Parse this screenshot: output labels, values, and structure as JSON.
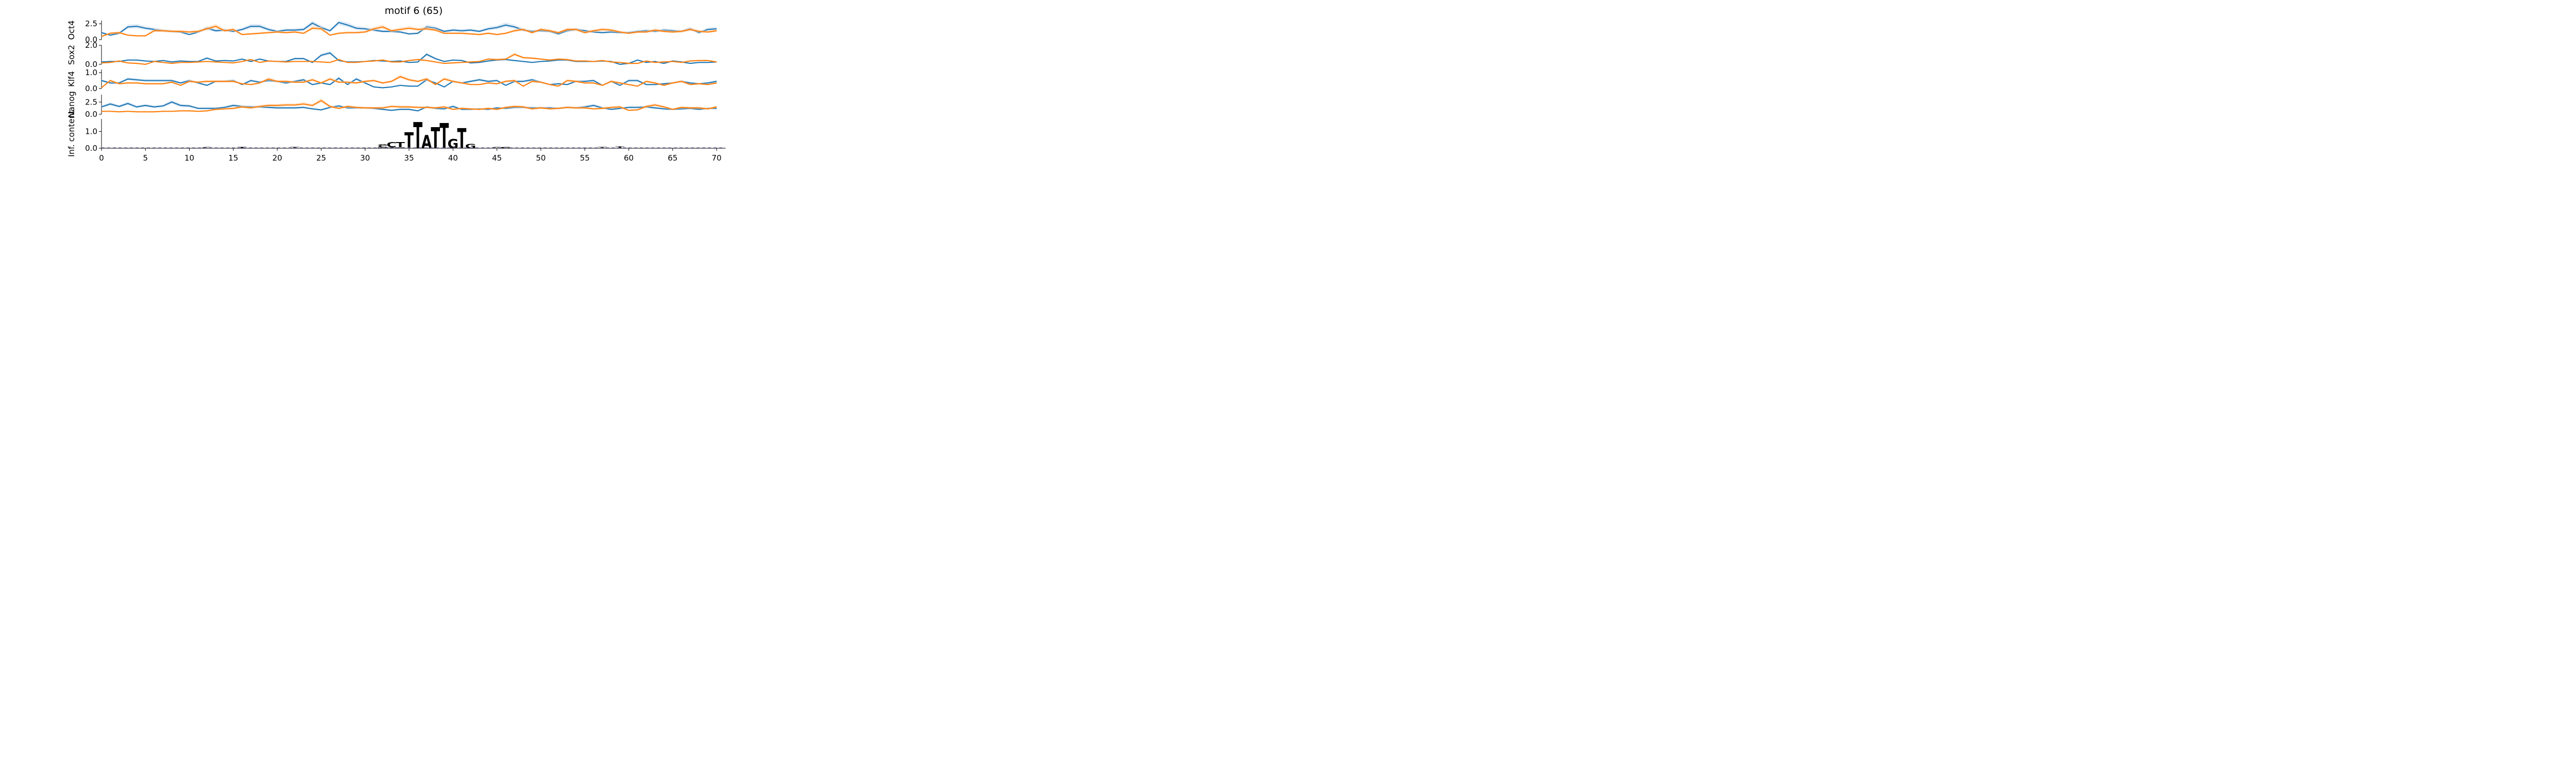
{
  "chart_data": {
    "type": "line",
    "title": "motif 6 (65)",
    "xlabel": "",
    "xlim": [
      0,
      71
    ],
    "x_ticks": [
      0,
      5,
      10,
      15,
      20,
      25,
      30,
      35,
      40,
      45,
      50,
      55,
      60,
      65,
      70
    ],
    "colors": {
      "blue": "#1f77b4",
      "orange": "#ff7f0e",
      "blue_band": "#c6dbef",
      "orange_band": "#fdd9b5"
    },
    "tracks": [
      {
        "ylabel": "Oct4",
        "ylim": [
          0,
          3.0
        ],
        "yticks": [
          0.0,
          2.5
        ],
        "ytick_labels": [
          "0.0",
          "2.5"
        ],
        "series": [
          {
            "color": "blue",
            "values": [
              1.1,
              0.7,
              1.0,
              2.0,
              2.1,
              1.8,
              1.6,
              1.4,
              1.3,
              1.2,
              0.8,
              1.2,
              1.8,
              1.4,
              1.5,
              1.3,
              1.6,
              2.1,
              2.1,
              1.6,
              1.3,
              1.5,
              1.5,
              1.6,
              2.6,
              1.9,
              1.4,
              2.7,
              2.3,
              1.8,
              1.7,
              1.5,
              1.3,
              1.3,
              1.2,
              0.9,
              1.0,
              2.0,
              1.8,
              1.3,
              1.5,
              1.4,
              1.5,
              1.3,
              1.7,
              1.9,
              2.3,
              2.0,
              1.5,
              1.3,
              1.4,
              1.3,
              0.9,
              1.4,
              1.6,
              1.4,
              1.2,
              1.1,
              1.2,
              1.1,
              1.1,
              1.3,
              1.4,
              1.3,
              1.5,
              1.4,
              1.3,
              1.7,
              1.1,
              1.6,
              1.7
            ]
          },
          {
            "color": "orange",
            "values": [
              0.5,
              1.0,
              1.1,
              0.7,
              0.6,
              0.6,
              1.4,
              1.4,
              1.3,
              1.3,
              1.2,
              1.3,
              1.7,
              2.1,
              1.4,
              1.6,
              0.8,
              0.9,
              1.0,
              1.1,
              1.2,
              1.1,
              1.2,
              1.0,
              1.8,
              1.7,
              0.7,
              1.0,
              1.1,
              1.1,
              1.2,
              1.7,
              2.0,
              1.4,
              1.6,
              1.8,
              1.6,
              1.7,
              1.5,
              1.0,
              1.0,
              1.0,
              0.9,
              0.8,
              1.0,
              0.8,
              1.0,
              1.4,
              1.6,
              1.1,
              1.6,
              1.4,
              1.1,
              1.6,
              1.6,
              1.1,
              1.4,
              1.6,
              1.5,
              1.2,
              1.0,
              1.2,
              1.2,
              1.5,
              1.3,
              1.2,
              1.3,
              1.6,
              1.3,
              1.2,
              1.4
            ]
          }
        ]
      },
      {
        "ylabel": "Sox2",
        "ylim": [
          0,
          2.0
        ],
        "yticks": [
          0.0,
          2.0
        ],
        "ytick_labels": [
          "0.0",
          "2.0"
        ],
        "series": [
          {
            "color": "blue",
            "values": [
              0.25,
              0.3,
              0.3,
              0.45,
              0.45,
              0.35,
              0.3,
              0.4,
              0.25,
              0.35,
              0.3,
              0.3,
              0.65,
              0.35,
              0.4,
              0.35,
              0.55,
              0.3,
              0.55,
              0.35,
              0.3,
              0.3,
              0.6,
              0.6,
              0.2,
              0.95,
              1.2,
              0.4,
              0.25,
              0.25,
              0.3,
              0.4,
              0.35,
              0.3,
              0.35,
              0.2,
              0.25,
              1.05,
              0.6,
              0.3,
              0.45,
              0.4,
              0.15,
              0.2,
              0.35,
              0.45,
              0.5,
              0.4,
              0.3,
              0.2,
              0.3,
              0.35,
              0.45,
              0.45,
              0.3,
              0.3,
              0.3,
              0.35,
              0.3,
              0.0,
              0.1,
              0.45,
              0.2,
              0.3,
              0.1,
              0.35,
              0.25,
              0.1,
              0.2,
              0.2,
              0.25
            ]
          },
          {
            "color": "orange",
            "values": [
              0.15,
              0.2,
              0.35,
              0.15,
              0.1,
              0.0,
              0.3,
              0.2,
              0.1,
              0.2,
              0.2,
              0.25,
              0.3,
              0.25,
              0.2,
              0.15,
              0.3,
              0.5,
              0.2,
              0.35,
              0.3,
              0.25,
              0.3,
              0.3,
              0.3,
              0.25,
              0.2,
              0.5,
              0.2,
              0.2,
              0.3,
              0.35,
              0.45,
              0.25,
              0.25,
              0.4,
              0.5,
              0.4,
              0.25,
              0.1,
              0.15,
              0.2,
              0.25,
              0.3,
              0.55,
              0.5,
              0.55,
              1.05,
              0.7,
              0.65,
              0.55,
              0.45,
              0.55,
              0.5,
              0.35,
              0.35,
              0.3,
              0.4,
              0.25,
              0.2,
              0.1,
              0.1,
              0.35,
              0.2,
              0.25,
              0.3,
              0.2,
              0.35,
              0.4,
              0.4,
              0.25
            ]
          }
        ]
      },
      {
        "ylabel": "Klf4",
        "ylim": [
          0,
          1.2
        ],
        "yticks": [
          0.0,
          1.0
        ],
        "ytick_labels": [
          "0.0",
          "1.0"
        ],
        "series": [
          {
            "color": "blue",
            "values": [
              0.5,
              0.35,
              0.35,
              0.6,
              0.55,
              0.5,
              0.5,
              0.5,
              0.5,
              0.35,
              0.5,
              0.35,
              0.2,
              0.45,
              0.45,
              0.5,
              0.25,
              0.5,
              0.4,
              0.5,
              0.45,
              0.35,
              0.45,
              0.55,
              0.25,
              0.35,
              0.25,
              0.65,
              0.25,
              0.6,
              0.35,
              0.1,
              0.05,
              0.1,
              0.2,
              0.15,
              0.15,
              0.55,
              0.35,
              0.1,
              0.45,
              0.35,
              0.45,
              0.55,
              0.45,
              0.5,
              0.2,
              0.45,
              0.45,
              0.55,
              0.4,
              0.25,
              0.3,
              0.25,
              0.45,
              0.45,
              0.5,
              0.2,
              0.45,
              0.2,
              0.5,
              0.5,
              0.25,
              0.25,
              0.3,
              0.35,
              0.45,
              0.35,
              0.3,
              0.35,
              0.45
            ]
          },
          {
            "color": "orange",
            "values": [
              0.05,
              0.5,
              0.3,
              0.35,
              0.35,
              0.3,
              0.3,
              0.3,
              0.4,
              0.2,
              0.45,
              0.4,
              0.45,
              0.45,
              0.45,
              0.45,
              0.3,
              0.25,
              0.35,
              0.6,
              0.45,
              0.45,
              0.4,
              0.4,
              0.55,
              0.35,
              0.6,
              0.4,
              0.4,
              0.35,
              0.45,
              0.5,
              0.35,
              0.45,
              0.75,
              0.55,
              0.45,
              0.6,
              0.25,
              0.6,
              0.45,
              0.35,
              0.25,
              0.25,
              0.35,
              0.3,
              0.45,
              0.5,
              0.15,
              0.45,
              0.4,
              0.25,
              0.15,
              0.5,
              0.45,
              0.35,
              0.35,
              0.2,
              0.45,
              0.35,
              0.25,
              0.15,
              0.45,
              0.35,
              0.2,
              0.35,
              0.45,
              0.25,
              0.3,
              0.25,
              0.35
            ]
          }
        ]
      },
      {
        "ylabel": "Nanog",
        "ylim": [
          0,
          4.0
        ],
        "yticks": [
          0.0,
          2.5
        ],
        "ytick_labels": [
          "0.0",
          "2.5"
        ],
        "series": [
          {
            "color": "blue",
            "values": [
              1.5,
              2.1,
              1.6,
              2.2,
              1.5,
              1.8,
              1.5,
              1.7,
              2.5,
              1.8,
              1.7,
              1.2,
              1.2,
              1.2,
              1.4,
              1.8,
              1.6,
              1.5,
              1.5,
              1.4,
              1.3,
              1.3,
              1.3,
              1.4,
              1.1,
              0.9,
              1.4,
              1.7,
              1.3,
              1.3,
              1.3,
              1.2,
              1.0,
              0.8,
              1.0,
              1.0,
              0.7,
              1.5,
              1.2,
              1.1,
              1.6,
              1.0,
              1.0,
              1.1,
              1.0,
              1.3,
              1.2,
              1.4,
              1.4,
              1.3,
              1.3,
              1.3,
              1.2,
              1.4,
              1.3,
              1.5,
              1.8,
              1.3,
              1.0,
              1.2,
              1.4,
              1.4,
              1.5,
              1.3,
              1.1,
              1.0,
              1.1,
              1.2,
              1.0,
              1.2,
              1.2
            ]
          },
          {
            "color": "orange",
            "values": [
              0.6,
              0.6,
              0.5,
              0.6,
              0.5,
              0.5,
              0.5,
              0.6,
              0.6,
              0.7,
              0.7,
              0.6,
              0.7,
              1.0,
              1.1,
              1.2,
              1.5,
              1.3,
              1.6,
              1.8,
              1.8,
              1.9,
              1.9,
              2.1,
              1.8,
              2.8,
              1.6,
              1.2,
              1.6,
              1.4,
              1.3,
              1.3,
              1.3,
              1.6,
              1.5,
              1.5,
              1.4,
              1.4,
              1.3,
              1.5,
              1.0,
              1.2,
              1.1,
              1.0,
              1.2,
              1.0,
              1.4,
              1.6,
              1.5,
              1.1,
              1.3,
              1.1,
              1.2,
              1.4,
              1.3,
              1.3,
              1.1,
              1.2,
              1.4,
              1.5,
              0.8,
              0.9,
              1.6,
              1.9,
              1.5,
              1.0,
              1.4,
              1.3,
              1.3,
              1.1,
              1.5
            ]
          }
        ]
      },
      {
        "ylabel": "Inf. content",
        "ylim": [
          0,
          1.75
        ],
        "yticks": [
          0.0,
          1.0
        ],
        "ytick_labels": [
          "0.0",
          "1.0"
        ],
        "logo": [
          {
            "pos": 32,
            "letters": [
              [
                "G",
                0.06
              ],
              [
                "C",
                0.12
              ],
              [
                "A",
                0.06
              ]
            ]
          },
          {
            "pos": 33,
            "letters": [
              [
                "T",
                0.06
              ],
              [
                "C",
                0.3
              ]
            ]
          },
          {
            "pos": 34,
            "letters": [
              [
                "G",
                0.06
              ],
              [
                "T",
                0.3
              ]
            ]
          },
          {
            "pos": 35,
            "letters": [
              [
                "T",
                0.95
              ]
            ]
          },
          {
            "pos": 36,
            "letters": [
              [
                "T",
                1.55
              ]
            ]
          },
          {
            "pos": 37,
            "letters": [
              [
                "A",
                0.8
              ]
            ]
          },
          {
            "pos": 38,
            "letters": [
              [
                "T",
                1.25
              ]
            ]
          },
          {
            "pos": 39,
            "letters": [
              [
                "T",
                1.48
              ]
            ]
          },
          {
            "pos": 40,
            "letters": [
              [
                "G",
                0.55
              ]
            ]
          },
          {
            "pos": 41,
            "letters": [
              [
                "T",
                1.2
              ]
            ]
          },
          {
            "pos": 42,
            "letters": [
              [
                "G",
                0.25
              ]
            ]
          },
          {
            "pos": 45,
            "letters": [
              [
                "G",
                0.08
              ]
            ]
          },
          {
            "pos": 46,
            "letters": [
              [
                "G",
                0.08
              ]
            ]
          },
          {
            "pos": 57,
            "letters": [
              [
                "T",
                0.08
              ]
            ]
          },
          {
            "pos": 59,
            "letters": [
              [
                "T",
                0.1
              ]
            ]
          },
          {
            "pos": 12,
            "letters": [
              [
                "C",
                0.08
              ]
            ]
          },
          {
            "pos": 16,
            "letters": [
              [
                "T",
                0.08
              ]
            ]
          },
          {
            "pos": 22,
            "letters": [
              [
                "T",
                0.07
              ]
            ]
          }
        ]
      }
    ]
  }
}
